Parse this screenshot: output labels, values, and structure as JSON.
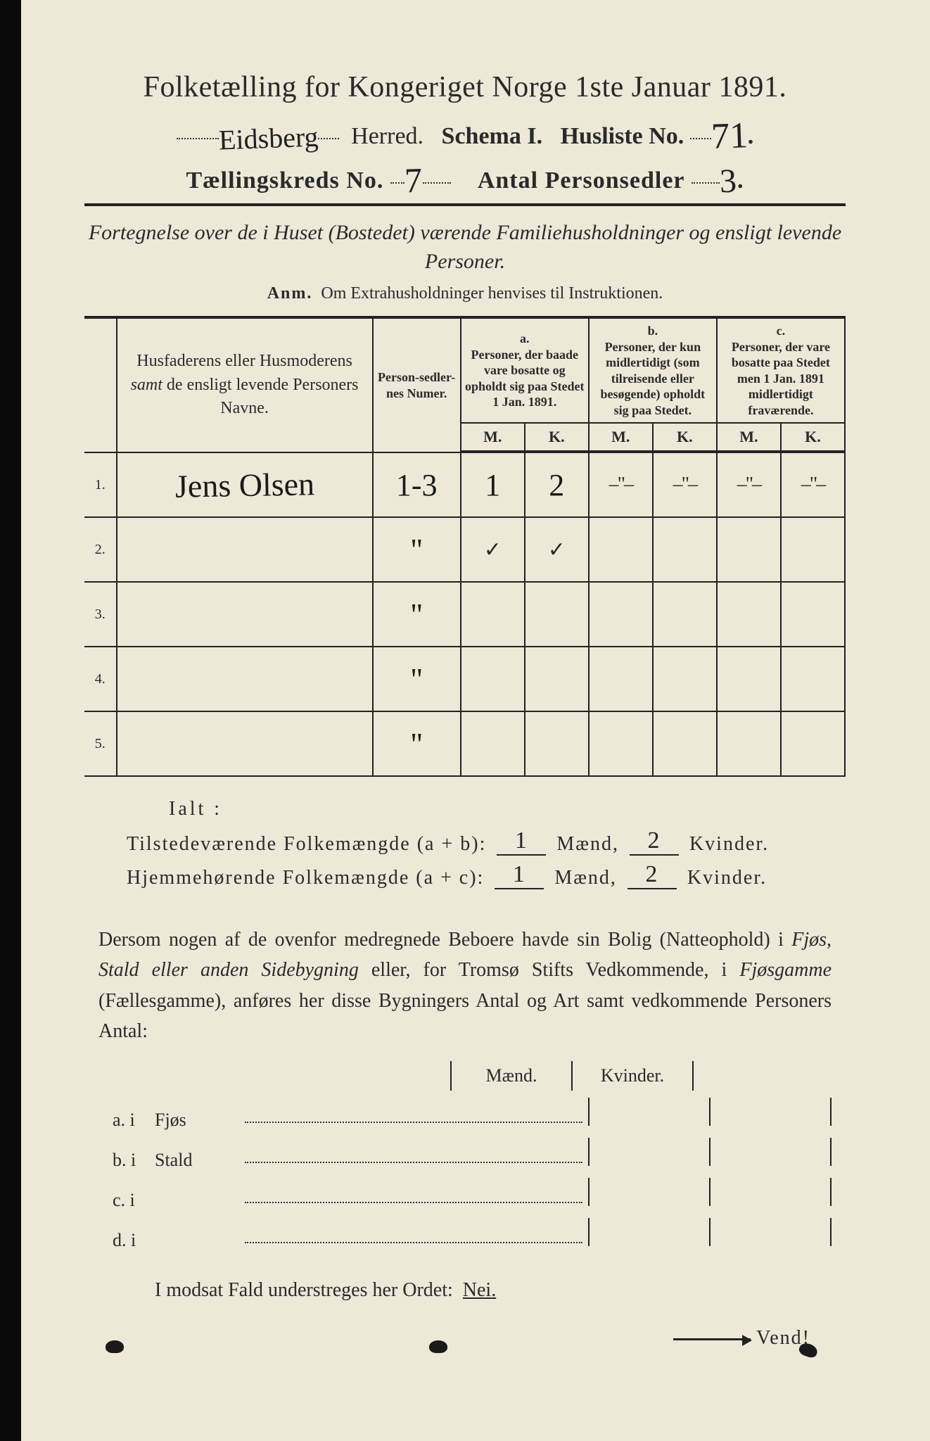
{
  "paper_bg": "#ede8d8",
  "ink": "#2a2a2a",
  "title": "Folketælling for Kongeriget Norge 1ste Januar 1891.",
  "herred_label": "Herred.",
  "herred_value": "Eidsberg",
  "schema_label": "Schema I.",
  "husliste_label": "Husliste No.",
  "husliste_value": "71",
  "kreds_label": "Tællingskreds No.",
  "kreds_value": "7",
  "sedler_label": "Antal Personsedler",
  "sedler_value": "3",
  "subtitle": "Fortegnelse over de i Huset (Bostedet) værende Familiehusholdninger og ensligt levende Personer.",
  "anm_label": "Anm.",
  "anm_text": "Om Extrahusholdninger henvises til Instruktionen.",
  "table": {
    "col_names": "Husfaderens eller Husmoderens <span class='em'>samt</span> de ensligt levende Personers Navne.",
    "col_numer": "Person-sedler-nes Numer.",
    "col_a_label": "a.",
    "col_a_text": "Personer, der baade vare bosatte og opholdt sig paa Stedet 1 Jan. 1891.",
    "col_b_label": "b.",
    "col_b_text": "Personer, der kun midlertidigt (som tilreisende eller besøgende) opholdt sig paa Stedet.",
    "col_c_label": "c.",
    "col_c_text": "Personer, der vare bosatte paa Stedet men 1 Jan. 1891 midlertidigt fraværende.",
    "mk_m": "M.",
    "mk_k": "K.",
    "rows": [
      {
        "n": "1.",
        "name": "Jens Olsen",
        "numer": "1-3",
        "a_m": "1",
        "a_k": "2",
        "b_m": "–\"–",
        "b_k": "–\"–",
        "c_m": "–\"–",
        "c_k": "–\"–"
      },
      {
        "n": "2.",
        "name": "",
        "numer": "\"",
        "a_m": "✓",
        "a_k": "✓",
        "b_m": "",
        "b_k": "",
        "c_m": "",
        "c_k": ""
      },
      {
        "n": "3.",
        "name": "",
        "numer": "\"",
        "a_m": "",
        "a_k": "",
        "b_m": "",
        "b_k": "",
        "c_m": "",
        "c_k": ""
      },
      {
        "n": "4.",
        "name": "",
        "numer": "\"",
        "a_m": "",
        "a_k": "",
        "b_m": "",
        "b_k": "",
        "c_m": "",
        "c_k": ""
      },
      {
        "n": "5.",
        "name": "",
        "numer": "\"",
        "a_m": "",
        "a_k": "",
        "b_m": "",
        "b_k": "",
        "c_m": "",
        "c_k": ""
      }
    ]
  },
  "ialt": "Ialt :",
  "sum1_label": "Tilstedeværende Folkemængde (a + b):",
  "sum2_label": "Hjemmehørende Folkemængde (a + c):",
  "maend": "Mænd,",
  "kvinder": "Kvinder.",
  "sum1_m": "1",
  "sum1_k": "2",
  "sum2_m": "1",
  "sum2_k": "2",
  "para": "Dersom nogen af de ovenfor medregnede Beboere havde sin Bolig (Natteophold) i <span class='it'>Fjøs, Stald eller anden Sidebygning</span> eller, for Tromsø Stifts Vedkommende, i <span class='it'>Fjøsgamme</span> (Fællesgamme), anføres her disse Bygningers Antal og Art samt vedkommende Personers Antal:",
  "sub_head_m": "Mænd.",
  "sub_head_k": "Kvinder.",
  "sub_rows": [
    {
      "lbl": "a.  i",
      "txt": "Fjøs"
    },
    {
      "lbl": "b.  i",
      "txt": "Stald"
    },
    {
      "lbl": "c.  i",
      "txt": ""
    },
    {
      "lbl": "d.  i",
      "txt": ""
    }
  ],
  "nei_line": "I modsat Fald understreges her Ordet:",
  "nei": "Nei.",
  "vend": "Vend!"
}
